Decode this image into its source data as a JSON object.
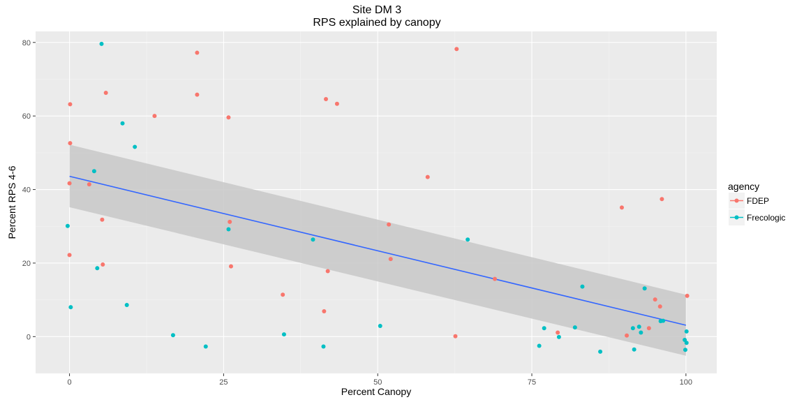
{
  "chart_data": {
    "type": "scatter",
    "title": "Site DM 3",
    "subtitle": "RPS explained by canopy",
    "xlabel": "Percent Canopy",
    "ylabel": "Percent RPS 4-6",
    "xlim": [
      -5.5,
      105
    ],
    "ylim": [
      -10,
      83
    ],
    "x_ticks": [
      0,
      25,
      50,
      75,
      100
    ],
    "y_ticks": [
      0,
      20,
      40,
      60,
      80
    ],
    "x_tick_labels": [
      "0",
      "25",
      "50",
      "75",
      "100"
    ],
    "y_tick_labels": [
      "0",
      "20",
      "40",
      "60",
      "80"
    ],
    "grid": true,
    "legend": {
      "title": "agency",
      "position": "right",
      "items": [
        {
          "name": "FDEP",
          "color": "#F8766D"
        },
        {
          "name": "Frecologic",
          "color": "#00BFC4"
        }
      ]
    },
    "colors": {
      "panel": "#EBEBEB",
      "grid_major": "#FFFFFF",
      "grid_minor": "#F5F5F5",
      "trend_line": "#3366FF",
      "ribbon": "#C8C8C8"
    },
    "trend": {
      "method": "linear fit with confidence band",
      "x": [
        0,
        100
      ],
      "y": [
        43.6,
        3.1
      ],
      "ci_lower": [
        35.2,
        -5.2
      ],
      "ci_upper": [
        52.2,
        11.4
      ]
    },
    "series": [
      {
        "name": "FDEP",
        "color": "#F8766D",
        "points": [
          [
            0.1,
            63.2
          ],
          [
            0.1,
            52.6
          ],
          [
            0.0,
            41.7
          ],
          [
            0.0,
            22.2
          ],
          [
            5.9,
            66.3
          ],
          [
            3.2,
            41.4
          ],
          [
            5.3,
            31.8
          ],
          [
            5.4,
            19.6
          ],
          [
            13.8,
            60.0
          ],
          [
            20.7,
            77.2
          ],
          [
            20.7,
            65.8
          ],
          [
            25.8,
            59.6
          ],
          [
            26.0,
            31.2
          ],
          [
            26.2,
            19.1
          ],
          [
            34.6,
            11.4
          ],
          [
            41.6,
            64.6
          ],
          [
            43.4,
            63.3
          ],
          [
            41.9,
            17.8
          ],
          [
            41.3,
            6.9
          ],
          [
            51.8,
            30.5
          ],
          [
            52.1,
            21.1
          ],
          [
            58.1,
            43.4
          ],
          [
            62.8,
            78.2
          ],
          [
            62.6,
            0.1
          ],
          [
            69.0,
            15.7
          ],
          [
            79.2,
            1.1
          ],
          [
            89.6,
            35.1
          ],
          [
            90.4,
            0.3
          ],
          [
            95.0,
            10.1
          ],
          [
            95.8,
            8.2
          ],
          [
            96.1,
            37.4
          ],
          [
            94.0,
            2.3
          ],
          [
            100.2,
            11.1
          ]
        ]
      },
      {
        "name": "Frecologic",
        "color": "#00BFC4",
        "points": [
          [
            5.2,
            79.6
          ],
          [
            8.6,
            58.0
          ],
          [
            10.6,
            51.6
          ],
          [
            4.0,
            45.0
          ],
          [
            -0.3,
            30.1
          ],
          [
            4.5,
            18.6
          ],
          [
            0.2,
            8.0
          ],
          [
            9.3,
            8.6
          ],
          [
            16.8,
            0.4
          ],
          [
            22.1,
            -2.7
          ],
          [
            25.8,
            29.2
          ],
          [
            34.8,
            0.6
          ],
          [
            39.5,
            26.4
          ],
          [
            41.2,
            -2.7
          ],
          [
            50.4,
            2.9
          ],
          [
            64.6,
            26.4
          ],
          [
            76.2,
            -2.5
          ],
          [
            77.0,
            2.3
          ],
          [
            79.4,
            -0.1
          ],
          [
            82.0,
            2.5
          ],
          [
            83.2,
            13.6
          ],
          [
            86.1,
            -4.1
          ],
          [
            91.4,
            2.3
          ],
          [
            91.6,
            -3.5
          ],
          [
            92.4,
            2.7
          ],
          [
            92.7,
            1.1
          ],
          [
            93.3,
            13.1
          ],
          [
            95.9,
            4.2
          ],
          [
            96.3,
            4.3
          ],
          [
            99.8,
            -0.9
          ],
          [
            100.1,
            1.4
          ],
          [
            100.1,
            -1.7
          ],
          [
            99.9,
            -3.6
          ]
        ]
      }
    ]
  }
}
